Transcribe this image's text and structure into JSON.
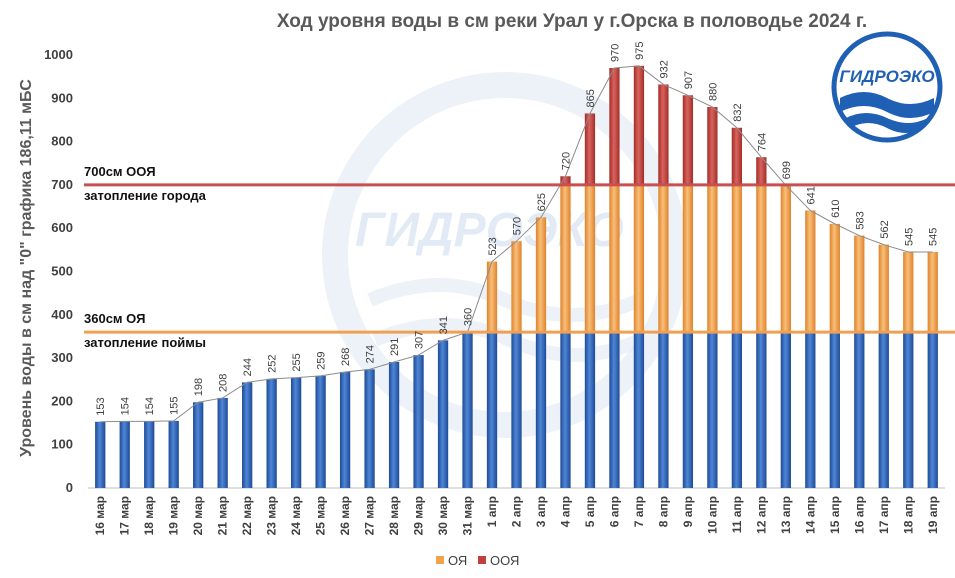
{
  "colors": {
    "base": "#2e63b8",
    "oya": "#f2a04a",
    "ooya": "#c0403a",
    "line_oya": "#f0a050",
    "line_ooya": "#c85050",
    "connector": "#8c8c8c",
    "watermark": "#c9d9ee"
  },
  "logo": {
    "text": "ГИДРОЭКО"
  },
  "watermark": {
    "text": "ГИДРОЭКО"
  },
  "chart_data": {
    "type": "bar",
    "title": "Ход уровня воды в см реки Урал у г.Орска в половодье 2024 г.",
    "ylabel": "Уровень воды в см над \"0\" графика 186,11 мБС",
    "ylim": [
      0,
      1000
    ],
    "yticks": [
      0,
      100,
      200,
      300,
      400,
      500,
      600,
      700,
      800,
      900,
      1000
    ],
    "stacked": true,
    "categories": [
      "16 мар",
      "17 мар",
      "18 мар",
      "19 мар",
      "20 мар",
      "21 мар",
      "22 мар",
      "23 мар",
      "24 мар",
      "25 мар",
      "26 мар",
      "27 мар",
      "28 мар",
      "29 мар",
      "30 мар",
      "31 мар",
      "1 апр",
      "2 апр",
      "3 апр",
      "4 апр",
      "5 апр",
      "6 апр",
      "7 апр",
      "8 апр",
      "9 апр",
      "10 апр",
      "11 апр",
      "12 апр",
      "13 апр",
      "14 апр",
      "15 апр",
      "16 апр",
      "17 апр",
      "18 апр",
      "19 апр"
    ],
    "values": [
      153,
      154,
      154,
      155,
      198,
      208,
      244,
      252,
      255,
      259,
      268,
      274,
      291,
      307,
      341,
      360,
      523,
      570,
      625,
      720,
      865,
      970,
      975,
      932,
      907,
      880,
      832,
      764,
      699,
      641,
      610,
      583,
      562,
      545,
      545
    ],
    "series": [
      {
        "name": "",
        "color_key": "base",
        "values": [
          153,
          154,
          154,
          155,
          198,
          208,
          244,
          252,
          255,
          259,
          268,
          274,
          291,
          307,
          341,
          360,
          360,
          360,
          360,
          360,
          360,
          360,
          360,
          360,
          360,
          360,
          360,
          360,
          360,
          360,
          360,
          360,
          360,
          360,
          360
        ]
      },
      {
        "name": "ОЯ",
        "color_key": "oya",
        "values": [
          0,
          0,
          0,
          0,
          0,
          0,
          0,
          0,
          0,
          0,
          0,
          0,
          0,
          0,
          0,
          0,
          163,
          210,
          265,
          340,
          340,
          340,
          340,
          340,
          340,
          340,
          340,
          340,
          339,
          281,
          250,
          223,
          202,
          185,
          185
        ]
      },
      {
        "name": "ООЯ",
        "color_key": "ooya",
        "values": [
          0,
          0,
          0,
          0,
          0,
          0,
          0,
          0,
          0,
          0,
          0,
          0,
          0,
          0,
          0,
          0,
          0,
          0,
          0,
          20,
          165,
          270,
          275,
          232,
          207,
          180,
          132,
          64,
          0,
          0,
          0,
          0,
          0,
          0,
          0
        ]
      }
    ],
    "thresholds": [
      {
        "value": 700,
        "label": "700см ООЯ",
        "sublabel": "затопление города",
        "color_key": "line_ooya"
      },
      {
        "value": 360,
        "label": "360см ОЯ",
        "sublabel": "затопление поймы",
        "color_key": "line_oya"
      }
    ],
    "legend": {
      "position": "bottom-center",
      "items": [
        {
          "label": "ОЯ",
          "color_key": "oya"
        },
        {
          "label": "ООЯ",
          "color_key": "ooya"
        }
      ]
    },
    "grid": false
  }
}
